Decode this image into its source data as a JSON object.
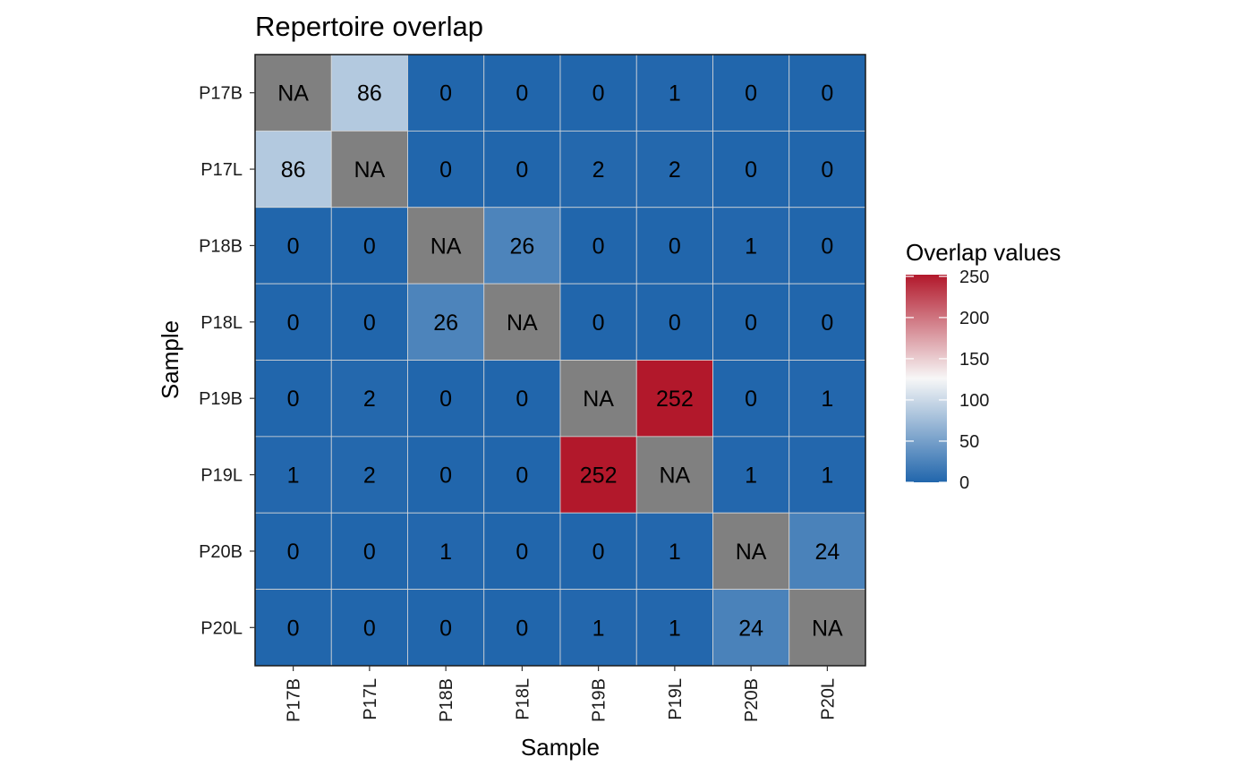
{
  "chart_data": {
    "type": "heatmap",
    "title": "Repertoire overlap",
    "xlabel": "Sample",
    "ylabel": "Sample",
    "x_categories": [
      "P17B",
      "P17L",
      "P18B",
      "P18L",
      "P19B",
      "P19L",
      "P20B",
      "P20L"
    ],
    "y_categories": [
      "P17B",
      "P17L",
      "P18B",
      "P18L",
      "P19B",
      "P19L",
      "P20B",
      "P20L"
    ],
    "values": [
      [
        null,
        86,
        0,
        0,
        0,
        1,
        0,
        0
      ],
      [
        86,
        null,
        0,
        0,
        2,
        2,
        0,
        0
      ],
      [
        0,
        0,
        null,
        26,
        0,
        0,
        1,
        0
      ],
      [
        0,
        0,
        26,
        null,
        0,
        0,
        0,
        0
      ],
      [
        0,
        2,
        0,
        0,
        null,
        252,
        0,
        1
      ],
      [
        1,
        2,
        0,
        0,
        252,
        null,
        1,
        1
      ],
      [
        0,
        0,
        1,
        0,
        0,
        1,
        null,
        24
      ],
      [
        0,
        0,
        0,
        0,
        1,
        1,
        24,
        null
      ]
    ],
    "na_label": "NA",
    "na_color": "#808080",
    "legend": {
      "title": "Overlap values",
      "placement": "right",
      "range": [
        0,
        252
      ],
      "ticks": [
        0,
        50,
        100,
        150,
        200,
        250
      ],
      "colors": {
        "low": "#2166AC",
        "mid": "#F7F7F7",
        "high": "#B2182B"
      },
      "midpoint": 126
    },
    "grid": true
  }
}
